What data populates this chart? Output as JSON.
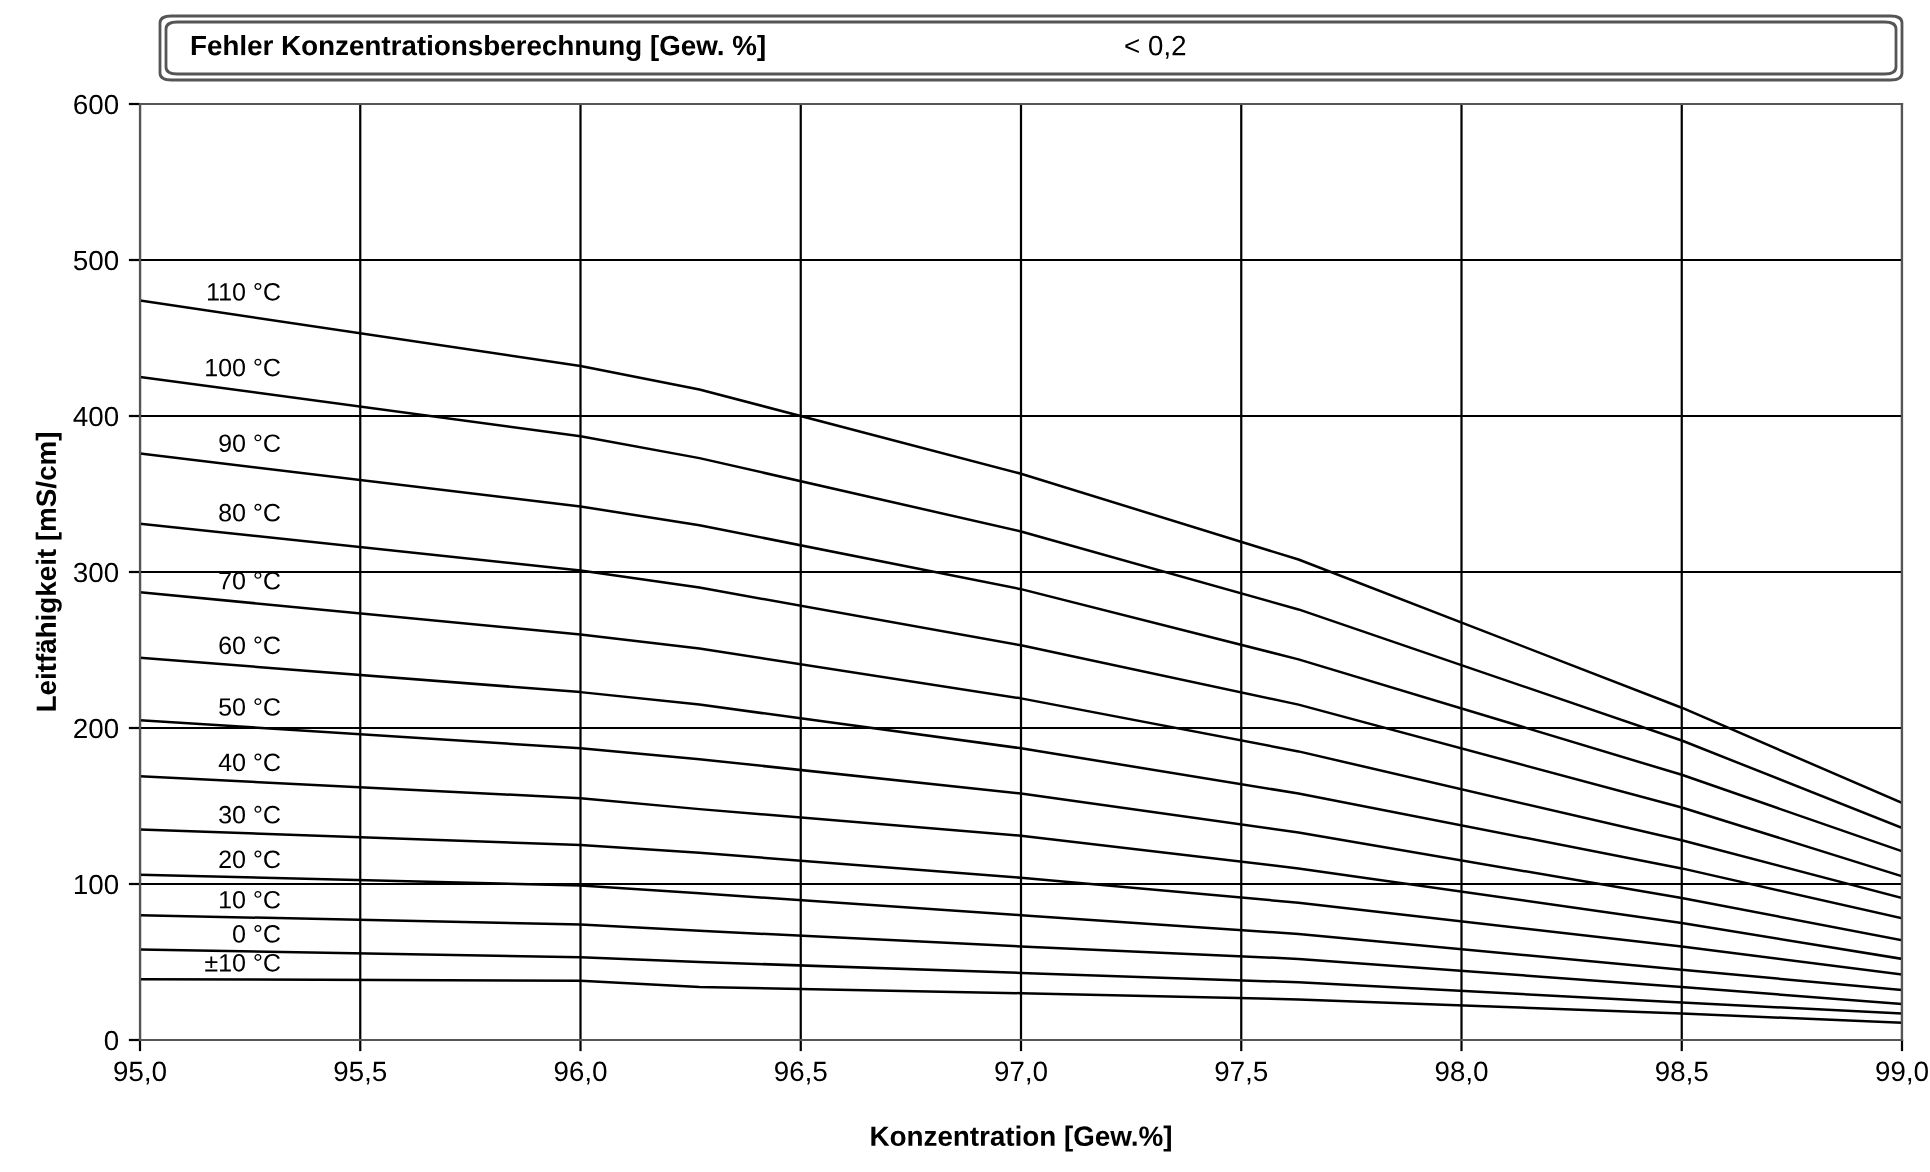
{
  "chart_data": {
    "type": "line",
    "title": "Fehler Konzentrationsberechnung [Gew. %]",
    "annotations": [
      "< 0,2"
    ],
    "xlabel": "Konzentration [Gew.%]",
    "ylabel": "Leitfähigkeit [mS/cm]",
    "x": [
      95,
      96,
      96.27,
      97,
      97.63,
      98.5,
      99
    ],
    "series": [
      {
        "name": "110 °C",
        "color": "#000000",
        "values": [
          474,
          432,
          417,
          363,
          308,
          213,
          152
        ]
      },
      {
        "name": "100 °C",
        "color": "#000000",
        "values": [
          425,
          387,
          373,
          326,
          276,
          192,
          136
        ]
      },
      {
        "name": "90 °C",
        "color": "#000000",
        "values": [
          376,
          342,
          330,
          289,
          244,
          170,
          121
        ]
      },
      {
        "name": "80 °C",
        "color": "#000000",
        "values": [
          331,
          301,
          290,
          253,
          215,
          149,
          105
        ]
      },
      {
        "name": "70 °C",
        "color": "#000000",
        "values": [
          287,
          260,
          251,
          219,
          185,
          128,
          91
        ]
      },
      {
        "name": "60 °C",
        "color": "#000000",
        "values": [
          245,
          223,
          215,
          187,
          158,
          110,
          78
        ]
      },
      {
        "name": "50 °C",
        "color": "#000000",
        "values": [
          205,
          187,
          180,
          158,
          133,
          91,
          64
        ]
      },
      {
        "name": "40 °C",
        "color": "#000000",
        "values": [
          169,
          155,
          148,
          131,
          110,
          75,
          52
        ]
      },
      {
        "name": "30 °C",
        "color": "#000000",
        "values": [
          135,
          125,
          120,
          104,
          88,
          60,
          42
        ]
      },
      {
        "name": "20 °C",
        "color": "#000000",
        "values": [
          106,
          99,
          94,
          80,
          68,
          45,
          32
        ]
      },
      {
        "name": "10 °C",
        "color": "#000000",
        "values": [
          80,
          74,
          70,
          60,
          52,
          34,
          23
        ]
      },
      {
        "name": "0 °C",
        "color": "#000000",
        "values": [
          58,
          53,
          50,
          43,
          37,
          24,
          17
        ]
      },
      {
        "name": "±10 °C",
        "color": "#000000",
        "values": [
          39,
          38,
          34,
          30,
          26,
          17,
          11
        ]
      }
    ],
    "xlim": [
      95,
      99
    ],
    "ylim": [
      0,
      600
    ],
    "xticks": [
      {
        "value": 95,
        "label": "95,0"
      },
      {
        "value": 95.5,
        "label": "95,5"
      },
      {
        "value": 96,
        "label": "96,0"
      },
      {
        "value": 96.5,
        "label": "96,5"
      },
      {
        "value": 97,
        "label": "97,0"
      },
      {
        "value": 97.5,
        "label": "97,5"
      },
      {
        "value": 98,
        "label": "98,0"
      },
      {
        "value": 98.5,
        "label": "98,5"
      },
      {
        "value": 99,
        "label": "99,0"
      }
    ],
    "yticks": [
      0,
      100,
      200,
      300,
      400,
      500,
      600
    ],
    "grid": true,
    "legend": false,
    "marker": "none",
    "line_style": "solid"
  }
}
